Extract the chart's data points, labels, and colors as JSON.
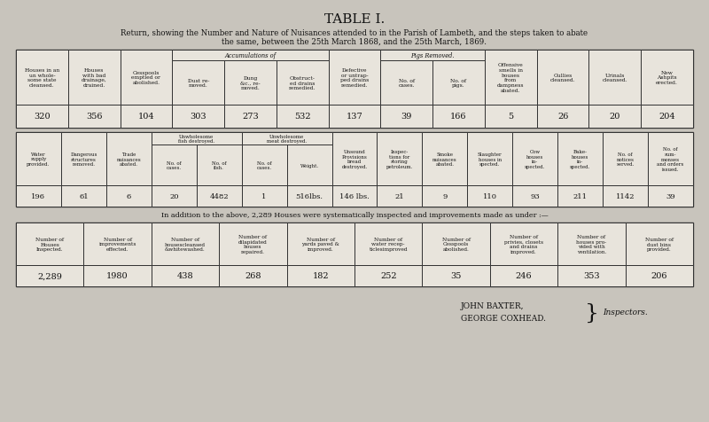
{
  "title": "TABLE I.",
  "subtitle": "Return, showing the Number and Nature of Nuisances attended to in the Parish of Lambeth, and the steps taken to abate",
  "subtitle2": "the same, between the 25th March 1868, and the 25th March, 1869.",
  "bg_color": "#c8c4bc",
  "table_bg": "#e8e4dc",
  "table1_headers": [
    "Houses in an\nun whole-\nsome state\ncleansed.",
    "Houses\nwith bad\ndrainage,\ndrained.",
    "Cesspools\nemptied or\nabolished.",
    "Dust re-\nmoved.",
    "Dung\n&c., re-\nmoved.",
    "Obstruct-\ned drains\nremedied.",
    "Defective\nor untrap-\nped drains\nremedied.",
    "No. of\ncases.",
    "No. of\npigs.",
    "Offensive\nsmells in\nhouses\nfrom\ndampness\nabated.",
    "Gullies\ncleansed.",
    "Urinals\ncleansed.",
    "New\nAshpits\nerected."
  ],
  "table1_values": [
    "320",
    "356",
    "104",
    "303",
    "273",
    "532",
    "137",
    "39",
    "166",
    "5",
    "26",
    "20",
    "204"
  ],
  "table2_headers": [
    "Water\nsupply\nprovided.",
    "Dangerous\nstructures\nremoved.",
    "Trade\nnuisances\nabated.",
    "No. of\ncases.",
    "No. of\nfish.",
    "No. of\ncases.",
    "Weight.",
    "Unsound\nProvisions\nbread\ndestroyed.",
    "Inspec-\ntions for\nstoring\npetroleum.",
    "Smoke\nnuisances\nabated.",
    "Slaughter\nhouses in\nspected.",
    "Cow\nhouses\nin-\nspected.",
    "Bake-\nhouses\nin-\nspected.",
    "No. of\nnotices\nserved.",
    "No. of\nsum-\nmonses\nand orders\nissued."
  ],
  "table2_values": [
    "196",
    "61",
    "6",
    "20",
    "4482",
    "1",
    "516lbs.",
    "146 lbs.",
    "21",
    "9",
    "110",
    "93",
    "211",
    "1142",
    "39"
  ],
  "table3_note": "In addition to the above, 2,289 Houses were systematically inspected and improvements made as under :—",
  "table3_headers": [
    "Number of\nHouses\nInspected.",
    "Number of\nimprovements\neffected.",
    "Number of\nhousescleansed\n&whitewashed.",
    "Number of\ndilapidated\nhouses\nrepaired.",
    "Number of\nyards paved &\nimproved.",
    "Number of\nwater recep-\nticlesimproved",
    "Number of\nCesspools\nabolished.",
    "Number of\nprivies, closets\nand drains\nimproved.",
    "Number of\nhouses pro-\nvided with\nventilation.",
    "Number of\ndust bins\nprovided."
  ],
  "table3_values": [
    "2,289",
    "1980",
    "438",
    "268",
    "182",
    "252",
    "35",
    "246",
    "353",
    "206"
  ]
}
